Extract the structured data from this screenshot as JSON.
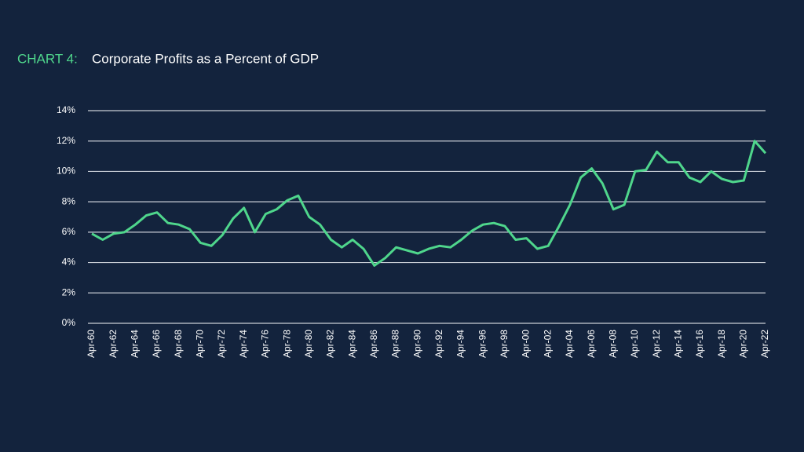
{
  "chart_data": {
    "type": "line",
    "title_label": "CHART 4:",
    "title": "Corporate Profits as a Percent of GDP",
    "categories": [
      "Apr-60",
      null,
      "Apr-62",
      null,
      "Apr-64",
      null,
      "Apr-66",
      null,
      "Apr-68",
      null,
      "Apr-70",
      null,
      "Apr-72",
      null,
      "Apr-74",
      null,
      "Apr-76",
      null,
      "Apr-78",
      null,
      "Apr-80",
      null,
      "Apr-82",
      null,
      "Apr-84",
      null,
      "Apr-86",
      null,
      "Apr-88",
      null,
      "Apr-90",
      null,
      "Apr-92",
      null,
      "Apr-94",
      null,
      "Apr-96",
      null,
      "Apr-98",
      null,
      "Apr-00",
      null,
      "Apr-02",
      null,
      "Apr-04",
      null,
      "Apr-06",
      null,
      "Apr-08",
      null,
      "Apr-10",
      null,
      "Apr-12",
      null,
      "Apr-14",
      null,
      "Apr-16",
      null,
      "Apr-18",
      null,
      "Apr-20",
      null,
      "Apr-22"
    ],
    "values": [
      5.9,
      5.5,
      5.9,
      6.0,
      6.5,
      7.1,
      7.3,
      6.6,
      6.5,
      6.2,
      5.3,
      5.1,
      5.8,
      6.9,
      7.6,
      6.0,
      7.2,
      7.5,
      8.1,
      8.4,
      7.0,
      6.5,
      5.5,
      5.0,
      5.5,
      4.9,
      3.8,
      4.3,
      5.0,
      4.8,
      4.6,
      4.9,
      5.1,
      5.0,
      5.5,
      6.1,
      6.5,
      6.6,
      6.4,
      5.5,
      5.6,
      4.9,
      5.1,
      6.4,
      7.8,
      9.6,
      10.2,
      9.2,
      7.5,
      7.8,
      10.0,
      10.1,
      11.3,
      10.6,
      10.6,
      9.6,
      9.3,
      10.0,
      9.5,
      9.3,
      9.4,
      12.0,
      11.2
    ],
    "color": "#4fd68c",
    "ylim": [
      0,
      14
    ],
    "yticks": [
      {
        "value": 0,
        "label": "0%"
      },
      {
        "value": 2,
        "label": "2%"
      },
      {
        "value": 4,
        "label": "4%"
      },
      {
        "value": 6,
        "label": "6%"
      },
      {
        "value": 8,
        "label": "8%"
      },
      {
        "value": 10,
        "label": "10%"
      },
      {
        "value": 12,
        "label": "12%"
      },
      {
        "value": 14,
        "label": "14%"
      }
    ],
    "grid": true
  }
}
